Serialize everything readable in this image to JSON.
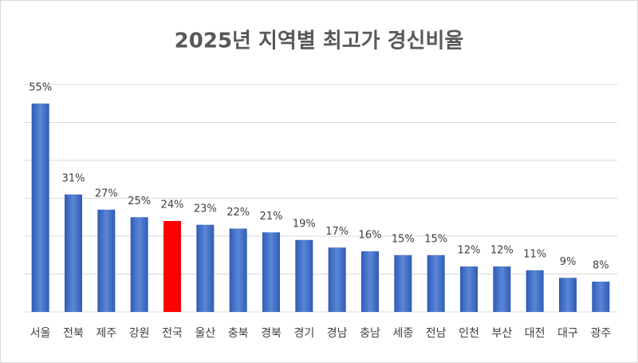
{
  "chart_data": {
    "type": "bar",
    "title": "2025년 지역별 최고가 경신비율",
    "categories": [
      "서울",
      "전북",
      "제주",
      "강원",
      "전국",
      "울산",
      "충북",
      "경북",
      "경기",
      "경남",
      "충남",
      "세종",
      "전남",
      "인천",
      "부산",
      "대전",
      "대구",
      "광주"
    ],
    "values": [
      55,
      31,
      27,
      25,
      24,
      23,
      22,
      21,
      19,
      17,
      16,
      15,
      15,
      12,
      12,
      11,
      9,
      8
    ],
    "value_labels": [
      "55%",
      "31%",
      "27%",
      "25%",
      "24%",
      "23%",
      "22%",
      "21%",
      "19%",
      "17%",
      "16%",
      "15%",
      "15%",
      "12%",
      "12%",
      "11%",
      "9%",
      "8%"
    ],
    "colors": [
      "#4472c4",
      "#4472c4",
      "#4472c4",
      "#4472c4",
      "#ff0000",
      "#4472c4",
      "#4472c4",
      "#4472c4",
      "#4472c4",
      "#4472c4",
      "#4472c4",
      "#4472c4",
      "#4472c4",
      "#4472c4",
      "#4472c4",
      "#4472c4",
      "#4472c4",
      "#4472c4"
    ],
    "ylim": [
      0,
      60
    ],
    "yticks": [
      0,
      10,
      20,
      30,
      40,
      50,
      60
    ],
    "grid": true
  }
}
